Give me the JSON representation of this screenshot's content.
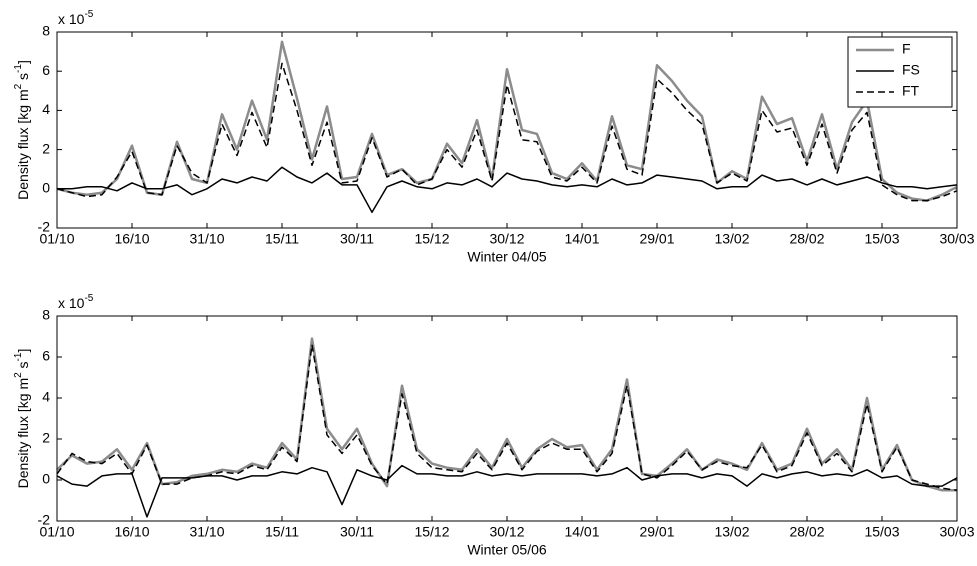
{
  "chart_data": [
    {
      "type": "line",
      "xlabel": "Winter 04/05",
      "ylabel_parts": [
        "Density flux [kg m",
        "2",
        " s",
        "-1",
        "]"
      ],
      "multiplier": "x 10",
      "multiplier_exp": "-5",
      "legend": "upper right",
      "x": [
        0,
        3,
        6,
        9,
        12,
        15,
        18,
        21,
        24,
        27,
        30,
        33,
        36,
        39,
        42,
        45,
        48,
        51,
        54,
        57,
        60,
        63,
        66,
        69,
        72,
        75,
        78,
        81,
        84,
        87,
        90,
        93,
        96,
        99,
        102,
        105,
        108,
        111,
        114,
        117,
        120,
        123,
        126,
        129,
        132,
        135,
        138,
        141,
        144,
        147,
        150,
        153,
        156,
        159,
        162,
        165,
        168,
        171,
        174,
        177,
        180
      ],
      "xlim": [
        0,
        180
      ],
      "xticks": [
        {
          "value": 0,
          "label": "01/10"
        },
        {
          "value": 15,
          "label": "16/10"
        },
        {
          "value": 30,
          "label": "31/10"
        },
        {
          "value": 45,
          "label": "15/11"
        },
        {
          "value": 60,
          "label": "30/11"
        },
        {
          "value": 75,
          "label": "15/12"
        },
        {
          "value": 90,
          "label": "30/12"
        },
        {
          "value": 105,
          "label": "14/01"
        },
        {
          "value": 120,
          "label": "29/01"
        },
        {
          "value": 135,
          "label": "13/02"
        },
        {
          "value": 150,
          "label": "28/02"
        },
        {
          "value": 165,
          "label": "15/03"
        },
        {
          "value": 180,
          "label": "30/03"
        }
      ],
      "ylim": [
        -2,
        8
      ],
      "yticks": [
        -2,
        0,
        2,
        4,
        6,
        8
      ],
      "series": [
        {
          "name": "F",
          "color": "#8c8c8c",
          "dash": false,
          "width": 2.5,
          "values": [
            0,
            -0.2,
            -0.3,
            -0.2,
            0.5,
            2.2,
            -0.2,
            -0.3,
            2.4,
            0.5,
            0.3,
            3.8,
            2.0,
            4.5,
            2.5,
            7.5,
            4.6,
            1.5,
            4.2,
            0.5,
            0.6,
            2.8,
            0.7,
            1.0,
            0.3,
            0.5,
            2.3,
            1.3,
            3.5,
            0.5,
            6.1,
            3.0,
            2.8,
            0.8,
            0.5,
            1.3,
            0.4,
            3.7,
            1.2,
            1.0,
            6.3,
            5.5,
            4.5,
            3.7,
            0.3,
            0.9,
            0.5,
            4.7,
            3.3,
            3.6,
            1.4,
            3.8,
            1.0,
            3.4,
            4.5,
            0.5,
            -0.2,
            -0.5,
            -0.6,
            -0.3,
            0.1
          ]
        },
        {
          "name": "FS",
          "color": "#000000",
          "dash": false,
          "width": 1.5,
          "values": [
            0,
            0,
            0.1,
            0.1,
            -0.1,
            0.3,
            0,
            0,
            0.2,
            -0.3,
            0,
            0.5,
            0.3,
            0.6,
            0.4,
            1.1,
            0.6,
            0.3,
            0.8,
            0.2,
            0.2,
            -1.2,
            0.1,
            0.4,
            0.1,
            0,
            0.3,
            0.2,
            0.5,
            0.1,
            0.8,
            0.5,
            0.4,
            0.2,
            0.1,
            0.2,
            0.1,
            0.5,
            0.2,
            0.3,
            0.7,
            0.6,
            0.5,
            0.4,
            0,
            0.1,
            0.1,
            0.7,
            0.4,
            0.5,
            0.2,
            0.5,
            0.2,
            0.4,
            0.6,
            0.3,
            0.1,
            0.1,
            0,
            0.1,
            0.2
          ]
        },
        {
          "name": "FT",
          "color": "#000000",
          "dash": true,
          "width": 1.5,
          "values": [
            0,
            -0.2,
            -0.4,
            -0.3,
            0.6,
            1.9,
            -0.2,
            -0.3,
            2.2,
            0.8,
            0.3,
            3.3,
            1.7,
            3.9,
            2.1,
            6.4,
            4.0,
            1.2,
            3.4,
            0.3,
            0.4,
            2.6,
            0.6,
            1.0,
            0.2,
            0.5,
            2.0,
            1.1,
            3.0,
            0.4,
            5.3,
            2.5,
            2.4,
            0.6,
            0.4,
            1.1,
            0.3,
            3.2,
            1.0,
            0.7,
            5.6,
            4.9,
            4.0,
            3.3,
            0.3,
            0.8,
            0.4,
            4.0,
            2.9,
            3.1,
            1.2,
            3.3,
            0.8,
            3.0,
            3.9,
            0.2,
            -0.3,
            -0.6,
            -0.6,
            -0.4,
            -0.1
          ]
        }
      ]
    },
    {
      "type": "line",
      "xlabel": "Winter 05/06",
      "ylabel_parts": [
        "Density flux [kg m",
        "2",
        " s",
        "-1",
        "]"
      ],
      "multiplier": "x 10",
      "multiplier_exp": "-5",
      "x": [
        0,
        3,
        6,
        9,
        12,
        15,
        18,
        21,
        24,
        27,
        30,
        33,
        36,
        39,
        42,
        45,
        48,
        51,
        54,
        57,
        60,
        63,
        66,
        69,
        72,
        75,
        78,
        81,
        84,
        87,
        90,
        93,
        96,
        99,
        102,
        105,
        108,
        111,
        114,
        117,
        120,
        123,
        126,
        129,
        132,
        135,
        138,
        141,
        144,
        147,
        150,
        153,
        156,
        159,
        162,
        165,
        168,
        171,
        174,
        177,
        180
      ],
      "xlim": [
        0,
        180
      ],
      "xticks": [
        {
          "value": 0,
          "label": "01/10"
        },
        {
          "value": 15,
          "label": "16/10"
        },
        {
          "value": 30,
          "label": "31/10"
        },
        {
          "value": 45,
          "label": "15/11"
        },
        {
          "value": 60,
          "label": "30/11"
        },
        {
          "value": 75,
          "label": "15/12"
        },
        {
          "value": 90,
          "label": "30/12"
        },
        {
          "value": 105,
          "label": "14/01"
        },
        {
          "value": 120,
          "label": "29/01"
        },
        {
          "value": 135,
          "label": "13/02"
        },
        {
          "value": 150,
          "label": "28/02"
        },
        {
          "value": 165,
          "label": "15/03"
        },
        {
          "value": 180,
          "label": "30/03"
        }
      ],
      "ylim": [
        -2,
        8
      ],
      "yticks": [
        -2,
        0,
        2,
        4,
        6,
        8
      ],
      "series": [
        {
          "color": "#8c8c8c",
          "dash": false,
          "width": 2.5,
          "values": [
            0.5,
            1.2,
            0.8,
            0.9,
            1.5,
            0.5,
            1.8,
            -0.2,
            -0.1,
            0.2,
            0.3,
            0.5,
            0.4,
            0.8,
            0.6,
            1.8,
            1.0,
            6.9,
            2.5,
            1.5,
            2.5,
            0.8,
            -0.3,
            4.6,
            1.5,
            0.8,
            0.6,
            0.5,
            1.5,
            0.6,
            2.0,
            0.6,
            1.5,
            2.0,
            1.6,
            1.7,
            0.5,
            1.5,
            4.9,
            0.3,
            0.2,
            0.8,
            1.5,
            0.5,
            1.0,
            0.8,
            0.5,
            1.8,
            0.5,
            0.8,
            2.5,
            0.8,
            1.5,
            0.5,
            4.0,
            0.5,
            1.7,
            0.0,
            -0.3,
            -0.5,
            -0.5
          ]
        },
        {
          "color": "#000000",
          "dash": false,
          "width": 1.5,
          "values": [
            0.2,
            -0.2,
            -0.3,
            0.2,
            0.3,
            0.3,
            -1.8,
            0.1,
            0.1,
            0.1,
            0.2,
            0.2,
            0,
            0.2,
            0.2,
            0.4,
            0.3,
            0.6,
            0.4,
            -1.2,
            0.5,
            0.2,
            0,
            0.7,
            0.3,
            0.3,
            0.2,
            0.2,
            0.4,
            0.2,
            0.3,
            0.2,
            0.3,
            0.3,
            0.3,
            0.3,
            0.2,
            0.3,
            0.6,
            0,
            0.2,
            0.3,
            0.3,
            0.1,
            0.3,
            0.2,
            -0.3,
            0.3,
            0.1,
            0.3,
            0.4,
            0.2,
            0.3,
            0.2,
            0.5,
            0.1,
            0.2,
            -0.2,
            -0.3,
            -0.3,
            0.1
          ]
        },
        {
          "color": "#000000",
          "dash": true,
          "width": 1.5,
          "values": [
            0.3,
            1.3,
            0.9,
            0.8,
            1.3,
            0.3,
            1.7,
            -0.2,
            -0.2,
            0.1,
            0.2,
            0.4,
            0.3,
            0.7,
            0.5,
            1.6,
            0.9,
            6.6,
            2.2,
            1.3,
            2.2,
            0.7,
            -0.2,
            4.2,
            1.3,
            0.6,
            0.5,
            0.4,
            1.3,
            0.5,
            1.8,
            0.5,
            1.4,
            1.8,
            1.5,
            1.5,
            0.4,
            1.3,
            4.6,
            0.3,
            0.1,
            0.7,
            1.4,
            0.5,
            0.9,
            0.7,
            0.6,
            1.7,
            0.4,
            0.7,
            2.3,
            0.7,
            1.3,
            0.4,
            3.7,
            0.4,
            1.6,
            0.0,
            -0.2,
            -0.4,
            -0.5
          ]
        }
      ]
    }
  ]
}
